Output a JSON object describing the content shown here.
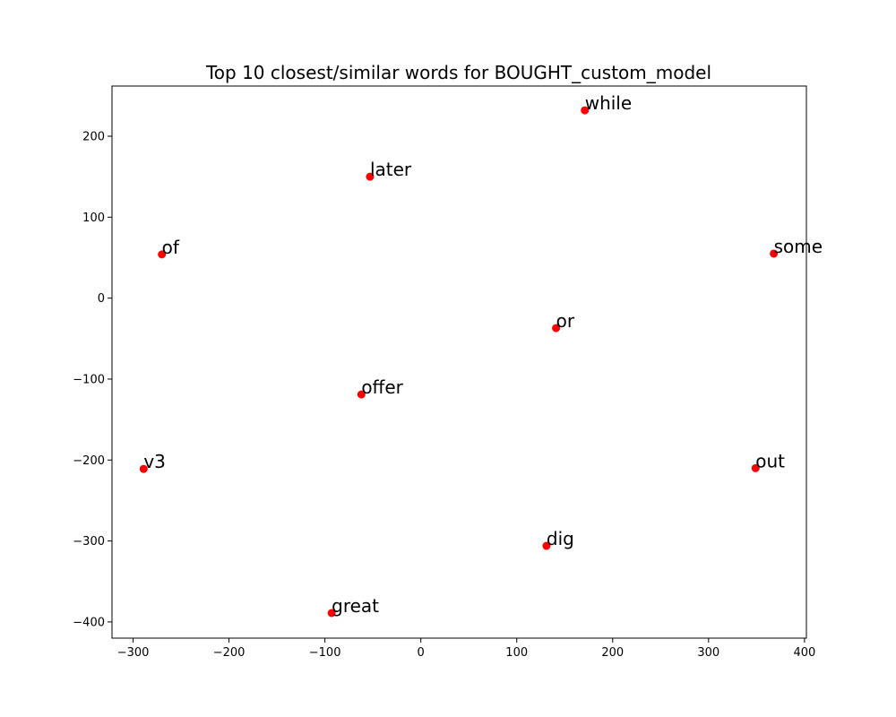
{
  "chart_data": {
    "type": "scatter",
    "title": "Top 10 closest/similar words for BOUGHT_custom_model",
    "xlabel": "",
    "ylabel": "",
    "xlim": [
      -322,
      402
    ],
    "ylim": [
      -420,
      262
    ],
    "x_ticks": [
      -300,
      -200,
      -100,
      0,
      100,
      200,
      300,
      400
    ],
    "y_ticks": [
      200,
      100,
      0,
      -100,
      -200,
      -300,
      -400
    ],
    "x_tick_labels": [
      "−300",
      "−200",
      "−100",
      "0",
      "100",
      "200",
      "300",
      "400"
    ],
    "y_tick_labels": [
      "200",
      "100",
      "0",
      "−100",
      "−200",
      "−300",
      "−400"
    ],
    "grid": false,
    "marker_color": "#ff0000",
    "points": [
      {
        "label": "while",
        "x": 171,
        "y": 232
      },
      {
        "label": "later",
        "x": -53,
        "y": 150
      },
      {
        "label": "of",
        "x": -270,
        "y": 54
      },
      {
        "label": "some",
        "x": 368,
        "y": 55
      },
      {
        "label": "or",
        "x": 141,
        "y": -37
      },
      {
        "label": "offer",
        "x": -62,
        "y": -119
      },
      {
        "label": "v3",
        "x": -289,
        "y": -211
      },
      {
        "label": "out",
        "x": 349,
        "y": -210
      },
      {
        "label": "dig",
        "x": 131,
        "y": -306
      },
      {
        "label": "great",
        "x": -93,
        "y": -389
      }
    ]
  }
}
